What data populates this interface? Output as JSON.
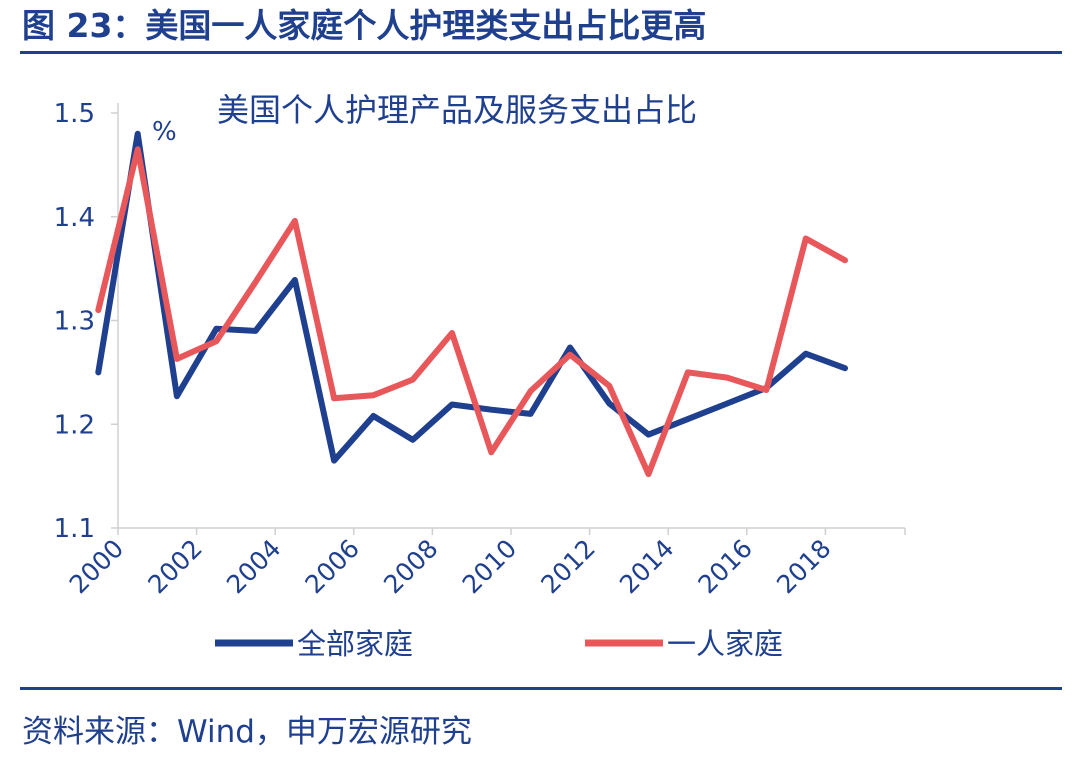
{
  "figure_title": "图 23：美国一人家庭个人护理类支出占比更高",
  "source": "资料来源：Wind，申万宏源研究",
  "colors": {
    "navy": "#1f3f8f",
    "red": "#e8585b",
    "axis": "#d0d0d0"
  },
  "chart_data": {
    "type": "line",
    "title": "美国个人护理产品及服务支出占比",
    "unit_label": "%",
    "xlabel": "",
    "ylabel": "",
    "ylim": [
      1.1,
      1.5
    ],
    "yticks": [
      "1.1",
      "1.2",
      "1.3",
      "1.4",
      "1.5"
    ],
    "x_tick_labels": [
      "2000",
      "2002",
      "2004",
      "2006",
      "2008",
      "2010",
      "2012",
      "2014",
      "2016",
      "2018"
    ],
    "x": [
      1999,
      2000,
      2001,
      2002,
      2003,
      2004,
      2005,
      2006,
      2007,
      2008,
      2009,
      2010,
      2011,
      2012,
      2013,
      2014,
      2015,
      2016,
      2017,
      2018
    ],
    "series": [
      {
        "name": "全部家庭",
        "color": "#1f3f8f",
        "values": [
          1.25,
          1.48,
          1.227,
          1.292,
          1.29,
          1.339,
          1.165,
          1.208,
          1.185,
          1.219,
          1.214,
          1.21,
          1.274,
          1.22,
          1.19,
          1.205,
          1.22,
          1.235,
          1.268,
          1.254
        ]
      },
      {
        "name": "一人家庭",
        "color": "#e8585b",
        "values": [
          1.31,
          1.465,
          1.263,
          1.28,
          1.337,
          1.396,
          1.225,
          1.228,
          1.243,
          1.288,
          1.173,
          1.232,
          1.267,
          1.237,
          1.152,
          1.25,
          1.245,
          1.233,
          1.379,
          1.358
        ]
      }
    ],
    "grid": false,
    "legend_position": "bottom"
  }
}
